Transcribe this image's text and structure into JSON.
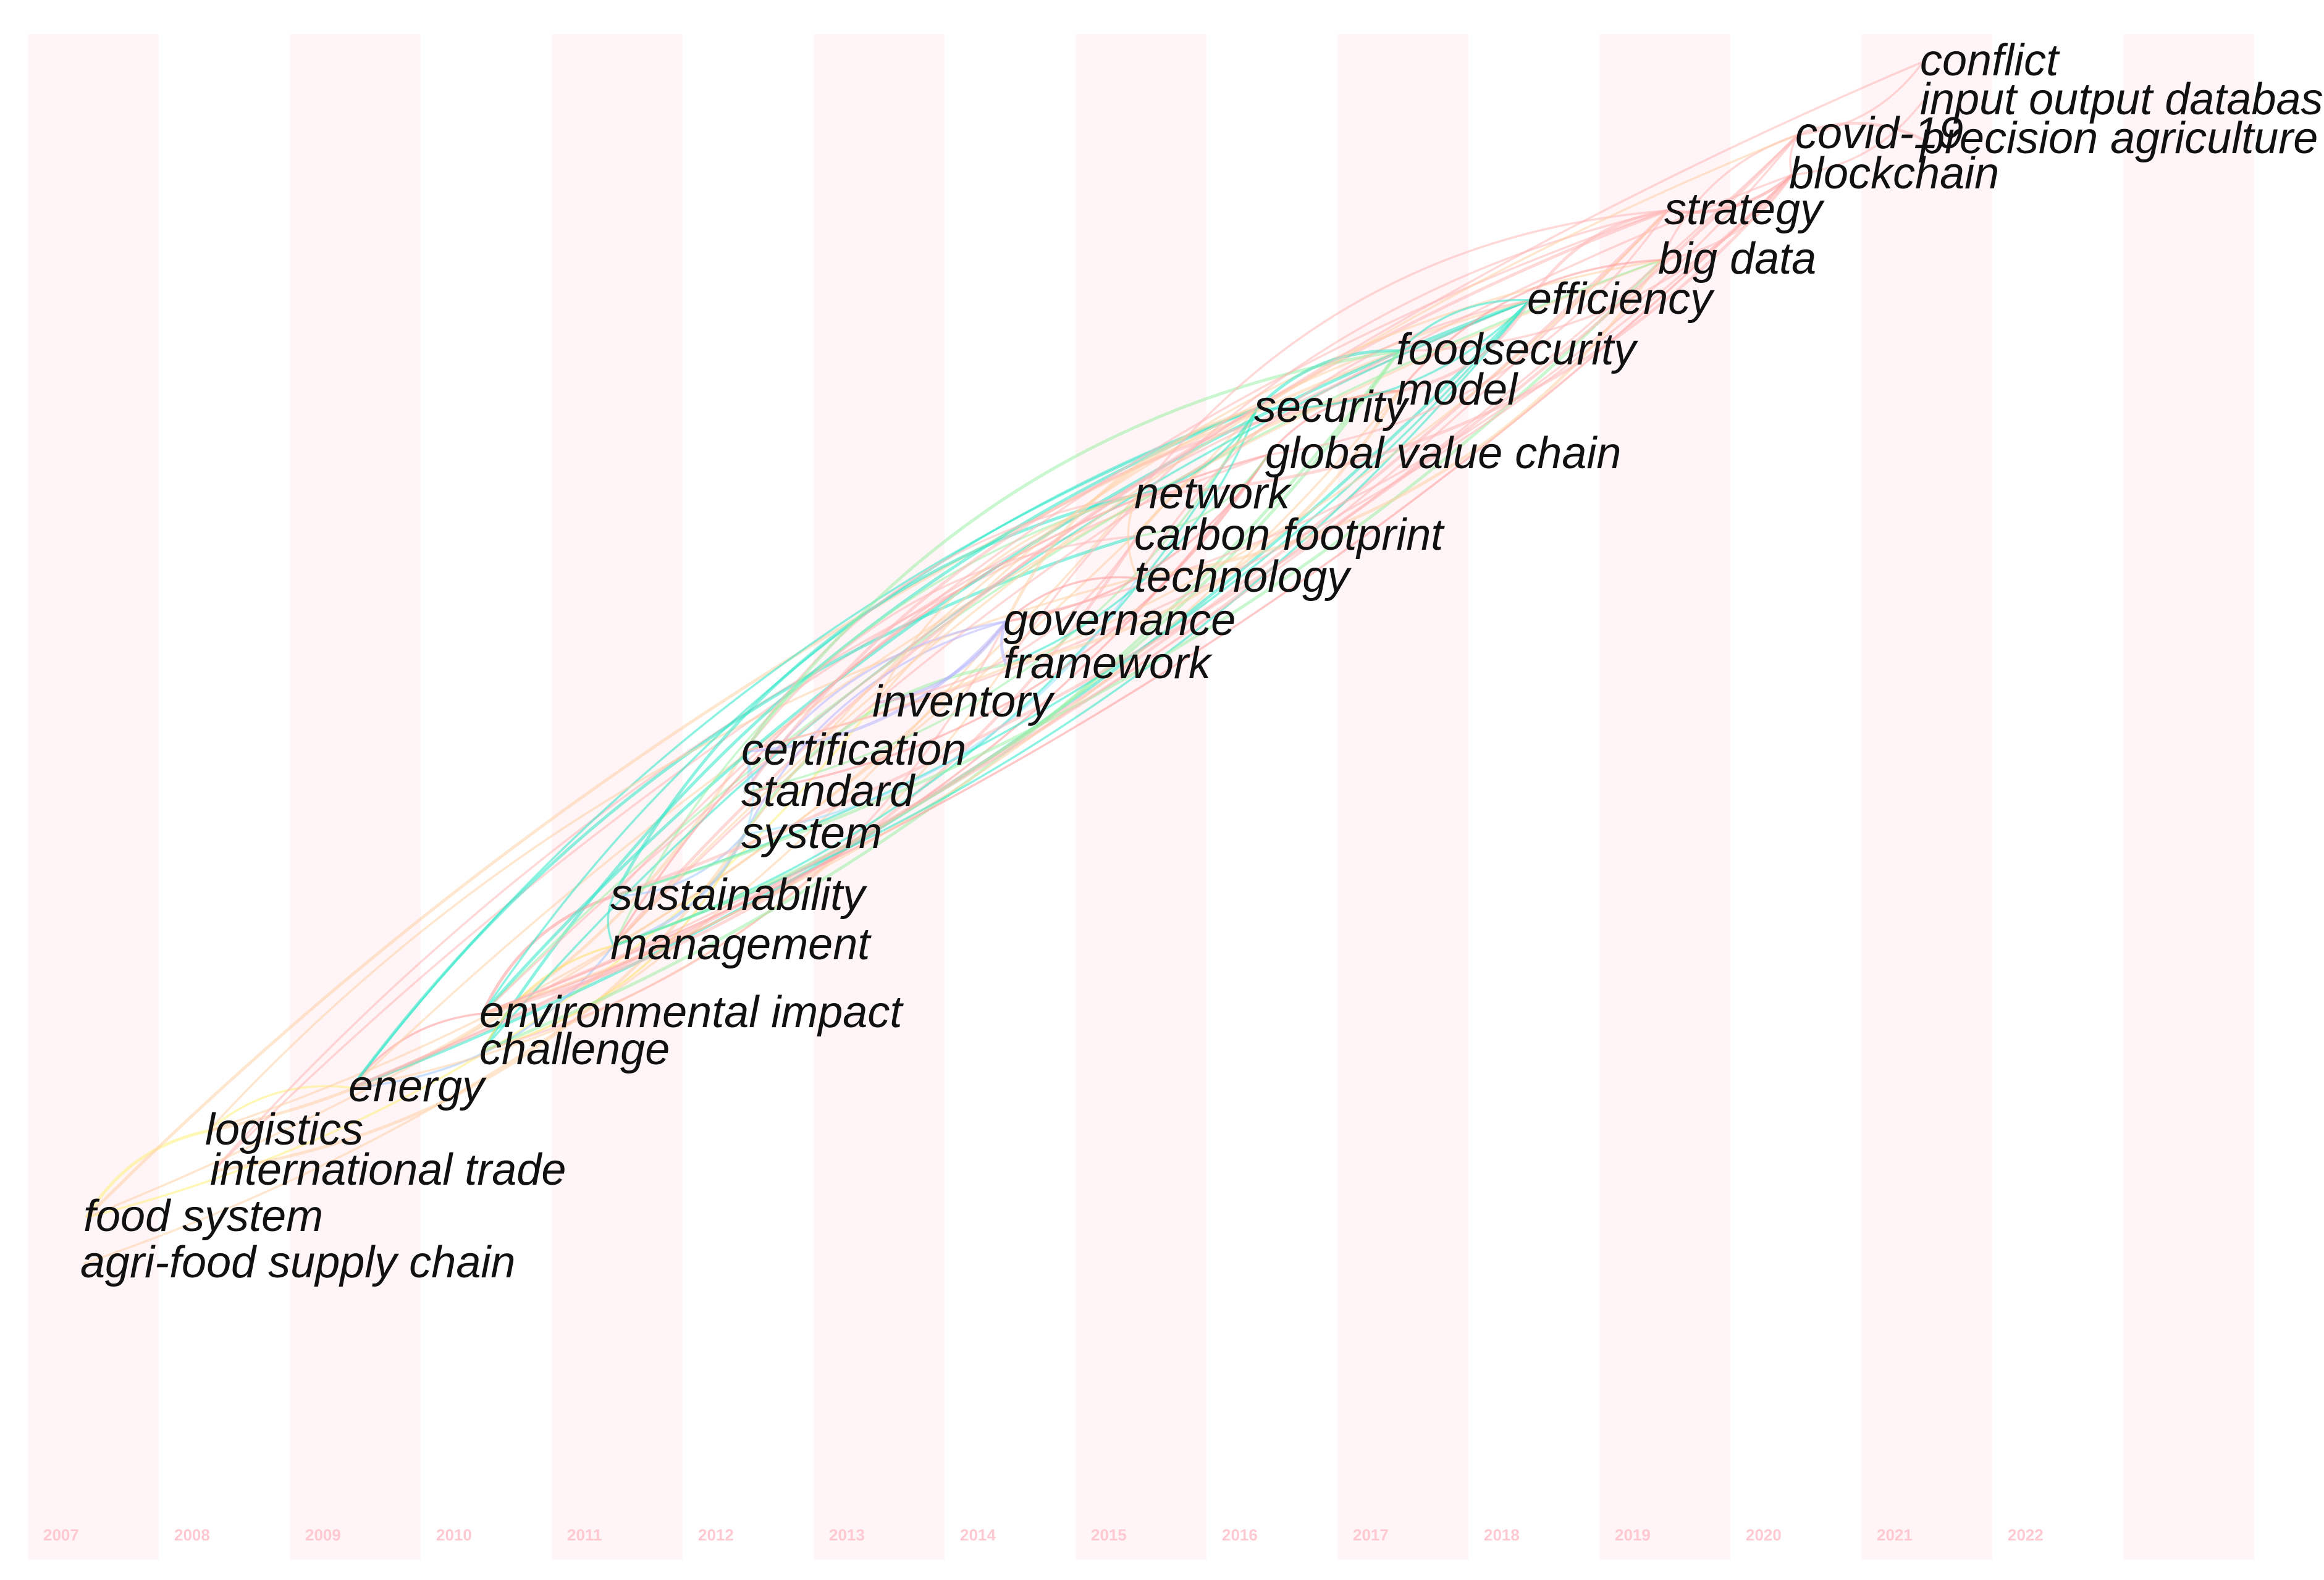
{
  "chart_data": {
    "type": "timeline",
    "years": [
      "2007",
      "2008",
      "2009",
      "2010",
      "2011",
      "2012",
      "2013",
      "2014",
      "2015",
      "2016",
      "2017",
      "2018",
      "2019",
      "2020",
      "2021",
      "2022"
    ],
    "keywords": [
      {
        "label": "agri-food supply chain",
        "year": 2007
      },
      {
        "label": "food system",
        "year": 2007
      },
      {
        "label": "international trade",
        "year": 2008
      },
      {
        "label": "logistics",
        "year": 2008
      },
      {
        "label": "energy",
        "year": 2009
      },
      {
        "label": "challenge",
        "year": 2010
      },
      {
        "label": "environmental impact",
        "year": 2010
      },
      {
        "label": "management",
        "year": 2011
      },
      {
        "label": "sustainability",
        "year": 2011
      },
      {
        "label": "system",
        "year": 2012
      },
      {
        "label": "standard",
        "year": 2012
      },
      {
        "label": "certification",
        "year": 2012
      },
      {
        "label": "inventory",
        "year": 2013
      },
      {
        "label": "framework",
        "year": 2014
      },
      {
        "label": "governance",
        "year": 2014
      },
      {
        "label": "technology",
        "year": 2015
      },
      {
        "label": "carbon footprint",
        "year": 2015
      },
      {
        "label": "network",
        "year": 2015
      },
      {
        "label": "global value chain",
        "year": 2016
      },
      {
        "label": "security",
        "year": 2016
      },
      {
        "label": "model",
        "year": 2017
      },
      {
        "label": "foodsecurity",
        "year": 2017
      },
      {
        "label": "efficiency",
        "year": 2018
      },
      {
        "label": "big data",
        "year": 2019
      },
      {
        "label": "strategy",
        "year": 2019
      },
      {
        "label": "blockchain",
        "year": 2020
      },
      {
        "label": "covid-19",
        "year": 2020
      },
      {
        "label": "precision agriculture",
        "year": 2021
      },
      {
        "label": "input output database",
        "year": 2021
      },
      {
        "label": "conflict",
        "year": 2021
      }
    ],
    "links": [
      [
        "logistics",
        "certification",
        "#ffd2a8"
      ],
      [
        "logistics",
        "energy",
        "#fff07a"
      ],
      [
        "food system",
        "inventory",
        "#fff07a"
      ],
      [
        "food system",
        "logistics",
        "#fff07a"
      ],
      [
        "agri-food supply chain",
        "governance",
        "#ffd2a8"
      ],
      [
        "international trade",
        "global value chain",
        "#ffb8b8"
      ],
      [
        "international trade",
        "system",
        "#ffd2a8"
      ],
      [
        "international trade",
        "efficiency",
        "#ffb8b8"
      ],
      [
        "logistics",
        "network",
        "#ffd2a8"
      ],
      [
        "food system",
        "foodsecurity",
        "#ffd2a8"
      ],
      [
        "food system",
        "security",
        "#ffd2a8"
      ],
      [
        "energy",
        "security",
        "#2ee8c8"
      ],
      [
        "energy",
        "efficiency",
        "#2ee8c8"
      ],
      [
        "energy",
        "environmental impact",
        "#ff9a9a"
      ],
      [
        "energy",
        "management",
        "#9cc8ff"
      ],
      [
        "energy",
        "carbon footprint",
        "#2ee8c8"
      ],
      [
        "energy",
        "framework",
        "#ffd2a8"
      ],
      [
        "energy",
        "big data",
        "#ffd2a8"
      ],
      [
        "energy",
        "strategy",
        "#ffb8b8"
      ],
      [
        "logistics",
        "technology",
        "#ffd2a8"
      ],
      [
        "challenge",
        "system",
        "#ffe066"
      ],
      [
        "challenge",
        "security",
        "#2ee8c8"
      ],
      [
        "challenge",
        "governance",
        "#ffb8b8"
      ],
      [
        "challenge",
        "management",
        "#ffe066"
      ],
      [
        "challenge",
        "foodsecurity",
        "#9cf0a8"
      ],
      [
        "challenge",
        "efficiency",
        "#2ee8c8"
      ],
      [
        "environmental impact",
        "blockchain",
        "#ff9a9a"
      ],
      [
        "environmental impact",
        "sustainability",
        "#ff9a9a"
      ],
      [
        "environmental impact",
        "global value chain",
        "#ff9a9a"
      ],
      [
        "environmental impact",
        "big data",
        "#9cf0a8"
      ],
      [
        "environmental impact",
        "carbon footprint",
        "#ffb8b8"
      ],
      [
        "environmental impact",
        "security",
        "#2ee8c8"
      ],
      [
        "environmental impact",
        "strategy",
        "#ffb8b8"
      ],
      [
        "environmental impact",
        "efficiency",
        "#2ee8c8"
      ],
      [
        "environmental impact",
        "model",
        "#ffd2a8"
      ],
      [
        "management",
        "sustainability",
        "#2ee8c8"
      ],
      [
        "management",
        "system",
        "#9cc8ff"
      ],
      [
        "management",
        "network",
        "#9cf0a8"
      ],
      [
        "management",
        "security",
        "#2ee8c8"
      ],
      [
        "management",
        "strategy",
        "#ffb8b8"
      ],
      [
        "management",
        "efficiency",
        "#2ee8c8"
      ],
      [
        "management",
        "blockchain",
        "#ffb8b8"
      ],
      [
        "management",
        "foodsecurity",
        "#9cf0a8"
      ],
      [
        "management",
        "global value chain",
        "#ff9a9a"
      ],
      [
        "sustainability",
        "system",
        "#9cc8ff"
      ],
      [
        "sustainability",
        "network",
        "#2ee8c8"
      ],
      [
        "sustainability",
        "efficiency",
        "#2ee8c8"
      ],
      [
        "sustainability",
        "strategy",
        "#ffb8b8"
      ],
      [
        "sustainability",
        "big data",
        "#9cf0a8"
      ],
      [
        "system",
        "governance",
        "#b6b6ff"
      ],
      [
        "system",
        "certification",
        "#9ae0ff"
      ],
      [
        "system",
        "framework",
        "#9cf0a8"
      ],
      [
        "system",
        "technology",
        "#9ae0ff"
      ],
      [
        "system",
        "efficiency",
        "#ffd2a8"
      ],
      [
        "standard",
        "certification",
        "#9ae0ff"
      ],
      [
        "standard",
        "governance",
        "#b6b6ff"
      ],
      [
        "standard",
        "global value chain",
        "#ff9a9a"
      ],
      [
        "standard",
        "model",
        "#ffb8b8"
      ],
      [
        "standard",
        "security",
        "#9cf0a8"
      ],
      [
        "certification",
        "carbon footprint",
        "#ffb8b8"
      ],
      [
        "certification",
        "governance",
        "#b6b6ff"
      ],
      [
        "certification",
        "network",
        "#ffb8b8"
      ],
      [
        "certification",
        "strategy",
        "#ffd2a8"
      ],
      [
        "certification",
        "foodsecurity",
        "#9cf0a8"
      ],
      [
        "certification",
        "blockchain",
        "#ffb8b8"
      ],
      [
        "inventory",
        "big data",
        "#ffd2a8"
      ],
      [
        "inventory",
        "governance",
        "#b6b6ff"
      ],
      [
        "inventory",
        "network",
        "#ffd2a8"
      ],
      [
        "inventory",
        "carbon footprint",
        "#ffb8b8"
      ],
      [
        "framework",
        "governance",
        "#b6b6ff"
      ],
      [
        "framework",
        "security",
        "#2ee8c8"
      ],
      [
        "framework",
        "strategy",
        "#ffb8b8"
      ],
      [
        "framework",
        "model",
        "#ffd2a8"
      ],
      [
        "governance",
        "technology",
        "#ff9a9a"
      ],
      [
        "governance",
        "global value chain",
        "#ff9a9a"
      ],
      [
        "governance",
        "security",
        "#ffd2a8"
      ],
      [
        "governance",
        "covid-19",
        "#ffb8b8"
      ],
      [
        "technology",
        "network",
        "#ffd2a8"
      ],
      [
        "technology",
        "big data",
        "#ffd2a8"
      ],
      [
        "technology",
        "efficiency",
        "#ffb8b8"
      ],
      [
        "carbon footprint",
        "global value chain",
        "#9cf0a8"
      ],
      [
        "carbon footprint",
        "model",
        "#ffd2a8"
      ],
      [
        "network",
        "security",
        "#2ee8c8"
      ],
      [
        "network",
        "strategy",
        "#ffb8b8"
      ],
      [
        "network",
        "blockchain",
        "#ffb8b8"
      ],
      [
        "global value chain",
        "model",
        "#ff9a9a"
      ],
      [
        "global value chain",
        "strategy",
        "#ffb8b8"
      ],
      [
        "security",
        "foodsecurity",
        "#2ee8c8"
      ],
      [
        "security",
        "efficiency",
        "#2ee8c8"
      ],
      [
        "model",
        "big data",
        "#ff9a9a"
      ],
      [
        "model",
        "efficiency",
        "#ffb8b8"
      ],
      [
        "foodsecurity",
        "efficiency",
        "#2ee8c8"
      ],
      [
        "foodsecurity",
        "blockchain",
        "#ffb8b8"
      ],
      [
        "efficiency",
        "strategy",
        "#ffb8b8"
      ],
      [
        "big data",
        "blockchain",
        "#ffb8b8"
      ],
      [
        "big data",
        "covid-19",
        "#ffb8b8"
      ],
      [
        "strategy",
        "blockchain",
        "#ff9a9a"
      ],
      [
        "blockchain",
        "covid-19",
        "#ffb8b8"
      ],
      [
        "covid-19",
        "conflict",
        "#ffb8b8"
      ],
      [
        "covid-19",
        "precision agriculture",
        "#ffb8b8"
      ],
      [
        "blockchain",
        "input output database",
        "#ffb8b8"
      ],
      [
        "management",
        "covid-19",
        "#ffd2a8"
      ],
      [
        "sustainability",
        "covid-19",
        "#ffb8b8"
      ],
      [
        "environmental impact",
        "conflict",
        "#ffb8b8"
      ],
      [
        "energy",
        "covid-19",
        "#ffb8b8"
      ]
    ],
    "grid": false,
    "legend": "none",
    "colors": {
      "band": "#fff4f6",
      "year_label": "#ffc9d2",
      "keyword_text": "#111111"
    }
  }
}
